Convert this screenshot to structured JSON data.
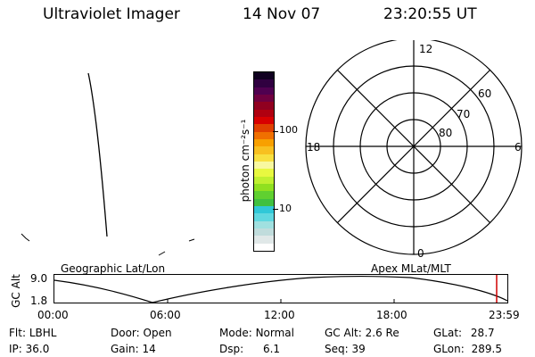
{
  "header": {
    "instrument": "Ultraviolet Imager",
    "date": "14 Nov 07",
    "time": "23:20:55 UT"
  },
  "colorbar": {
    "label": "photon cm⁻²s⁻¹",
    "tick_labels": [
      "100",
      "10"
    ],
    "colors": [
      "#ffffff",
      "#e0e8e8",
      "#c0dcdc",
      "#a0e0e0",
      "#60d8e0",
      "#30c8d8",
      "#40c040",
      "#60d030",
      "#90e020",
      "#c0f030",
      "#e8f840",
      "#f8f8a0",
      "#f8e040",
      "#f8c020",
      "#f8a000",
      "#f07000",
      "#e04000",
      "#d80000",
      "#b00010",
      "#900020",
      "#700040",
      "#500050",
      "#300040",
      "#100020"
    ]
  },
  "polar": {
    "labels_mlt": [
      "12",
      "18",
      "6",
      "0"
    ],
    "labels_lat": [
      "60",
      "70",
      "80"
    ]
  },
  "altitude": {
    "axis_label": "GC Alt",
    "y_ticks": [
      "9.0",
      "1.8"
    ],
    "left_title": "Geographic Lat/Lon",
    "right_title": "Apex MLat/MLT",
    "time_ticks": [
      "00:00",
      "06:00",
      "12:00",
      "18:00",
      "23:59"
    ],
    "marker_color": "#d00000"
  },
  "info": {
    "flt_label": "Flt:",
    "flt_value": "LBHL",
    "door_label": "Door:",
    "door_value": "Open",
    "mode_label": "Mode:",
    "mode_value": "Normal",
    "gcalt_label": "GC Alt:",
    "gcalt_value": "2.6 Re",
    "glat_label": "GLat:",
    "glat_value": "28.7",
    "ip_label": "IP:",
    "ip_value": "36.0",
    "gain_label": "Gain:",
    "gain_value": "14",
    "dsp_label": "Dsp:",
    "dsp_value": "6.1",
    "seq_label": "Seq:",
    "seq_value": "39",
    "glon_label": "GLon:",
    "glon_value": "289.5"
  }
}
